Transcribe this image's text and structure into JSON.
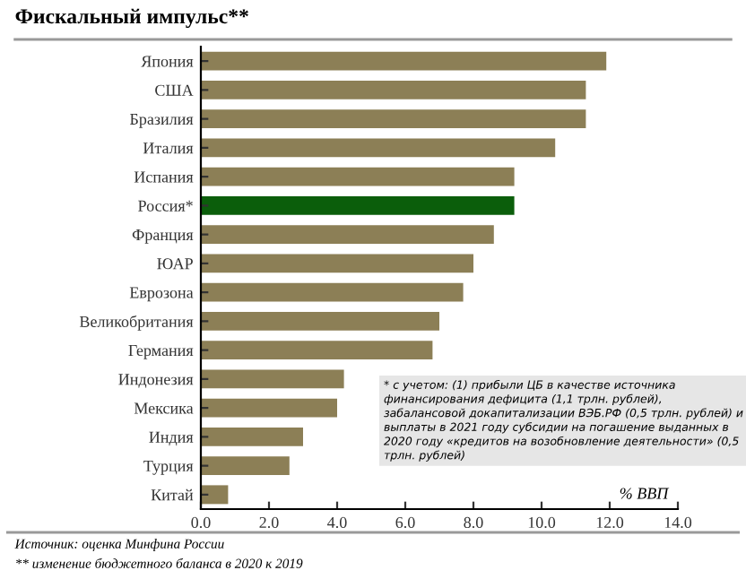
{
  "chart_data": {
    "type": "bar",
    "orientation": "horizontal",
    "title": "Фискальный импульс**",
    "categories": [
      "Япония",
      "США",
      "Бразилия",
      "Италия",
      "Испания",
      "Россия*",
      "Франция",
      "ЮАР",
      "Еврозона",
      "Великобритания",
      "Германия",
      "Индонезия",
      "Мексика",
      "Индия",
      "Турция",
      "Китай"
    ],
    "values": [
      11.9,
      11.3,
      11.3,
      10.4,
      9.2,
      9.2,
      8.6,
      8.0,
      7.7,
      7.0,
      6.8,
      4.2,
      4.0,
      3.0,
      2.6,
      0.8
    ],
    "colors": [
      "#8c7f56",
      "#8c7f56",
      "#8c7f56",
      "#8c7f56",
      "#8c7f56",
      "#0b5e0b",
      "#8c7f56",
      "#8c7f56",
      "#8c7f56",
      "#8c7f56",
      "#8c7f56",
      "#8c7f56",
      "#8c7f56",
      "#8c7f56",
      "#8c7f56",
      "#8c7f56"
    ],
    "xlim": [
      0,
      14
    ],
    "xticks": [
      {
        "value": 0,
        "label": "0.0"
      },
      {
        "value": 2,
        "label": "2.0"
      },
      {
        "value": 4,
        "label": "4.0"
      },
      {
        "value": 6,
        "label": "6.0"
      },
      {
        "value": 8,
        "label": "8.0"
      },
      {
        "value": 10,
        "label": "10.0"
      },
      {
        "value": 12,
        "label": "12.0"
      },
      {
        "value": 14,
        "label": "14.0"
      }
    ],
    "grid": false,
    "legend": false,
    "annotations": [
      "* с учетом: (1) прибыли ЦБ в качестве источника финансирования дефицита (1,1 трлн. рублей), забалансовой докапитализации ВЭБ.РФ (0,5 трлн. рублей) и выплаты в 2021 году субсидии на погашение выданных в 2020 году «кредитов на возобновление деятельности» (0,5 трлн. рублей)",
      "% ВВП",
      "Источник: оценка Минфина России",
      "** изменение бюджетного баланса в 2020 к 2019"
    ]
  }
}
